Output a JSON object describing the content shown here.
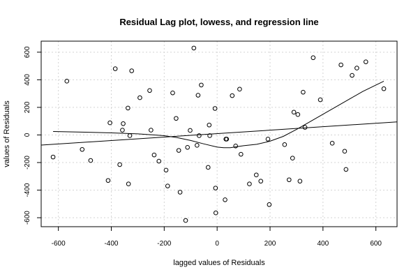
{
  "chart_data": {
    "type": "scatter",
    "title": "Residual Lag plot, lowess, and regression line",
    "xlabel": "lagged values of Residuals",
    "ylabel": "values of Residuals",
    "xlim": [
      -665,
      680
    ],
    "ylim": [
      -665,
      680
    ],
    "grid": true,
    "x_ticks": [
      -600,
      -400,
      -200,
      0,
      200,
      400,
      600
    ],
    "y_ticks": [
      -600,
      -400,
      -200,
      0,
      200,
      400,
      600
    ],
    "points": [
      [
        -620,
        -160
      ],
      [
        -568,
        390
      ],
      [
        -510,
        -105
      ],
      [
        -478,
        -185
      ],
      [
        -412,
        -330
      ],
      [
        -405,
        88
      ],
      [
        -385,
        480
      ],
      [
        -368,
        -215
      ],
      [
        -358,
        35
      ],
      [
        -355,
        82
      ],
      [
        -337,
        195
      ],
      [
        -335,
        -355
      ],
      [
        -330,
        -5
      ],
      [
        -323,
        465
      ],
      [
        -292,
        270
      ],
      [
        -255,
        322
      ],
      [
        -250,
        35
      ],
      [
        -238,
        -145
      ],
      [
        -220,
        -190
      ],
      [
        -193,
        -255
      ],
      [
        -187,
        -370
      ],
      [
        -168,
        305
      ],
      [
        -155,
        120
      ],
      [
        -145,
        -112
      ],
      [
        -140,
        -415
      ],
      [
        -119,
        -620
      ],
      [
        -112,
        -90
      ],
      [
        -102,
        33
      ],
      [
        -88,
        630
      ],
      [
        -76,
        -75
      ],
      [
        -72,
        288
      ],
      [
        -68,
        -5
      ],
      [
        -60,
        362
      ],
      [
        -34,
        -235
      ],
      [
        -30,
        72
      ],
      [
        -28,
        -5
      ],
      [
        -8,
        192
      ],
      [
        -6,
        -385
      ],
      [
        -5,
        -565
      ],
      [
        30,
        -470
      ],
      [
        33,
        -30
      ],
      [
        36,
        -30
      ],
      [
        57,
        285
      ],
      [
        70,
        -80
      ],
      [
        85,
        332
      ],
      [
        90,
        -140
      ],
      [
        122,
        -355
      ],
      [
        148,
        -290
      ],
      [
        165,
        -335
      ],
      [
        192,
        -30
      ],
      [
        197,
        -505
      ],
      [
        255,
        -70
      ],
      [
        272,
        -325
      ],
      [
        285,
        -168
      ],
      [
        290,
        165
      ],
      [
        305,
        148
      ],
      [
        313,
        -335
      ],
      [
        325,
        310
      ],
      [
        332,
        55
      ],
      [
        363,
        560
      ],
      [
        390,
        255
      ],
      [
        435,
        -60
      ],
      [
        468,
        508
      ],
      [
        482,
        -118
      ],
      [
        487,
        -250
      ],
      [
        510,
        432
      ],
      [
        528,
        485
      ],
      [
        562,
        530
      ],
      [
        630,
        335
      ]
    ],
    "regression_line": {
      "intercept": 9.7,
      "slope": 0.125
    },
    "lowess_curve": [
      [
        -620,
        25
      ],
      [
        -500,
        20
      ],
      [
        -400,
        15
      ],
      [
        -300,
        8
      ],
      [
        -200,
        -5
      ],
      [
        -150,
        -20
      ],
      [
        -100,
        -40
      ],
      [
        -50,
        -65
      ],
      [
        0,
        -88
      ],
      [
        25,
        -92
      ],
      [
        50,
        -92
      ],
      [
        100,
        -78
      ],
      [
        150,
        -68
      ],
      [
        200,
        -45
      ],
      [
        250,
        -10
      ],
      [
        300,
        40
      ],
      [
        350,
        95
      ],
      [
        400,
        150
      ],
      [
        450,
        205
      ],
      [
        500,
        260
      ],
      [
        550,
        315
      ],
      [
        630,
        390
      ]
    ]
  }
}
